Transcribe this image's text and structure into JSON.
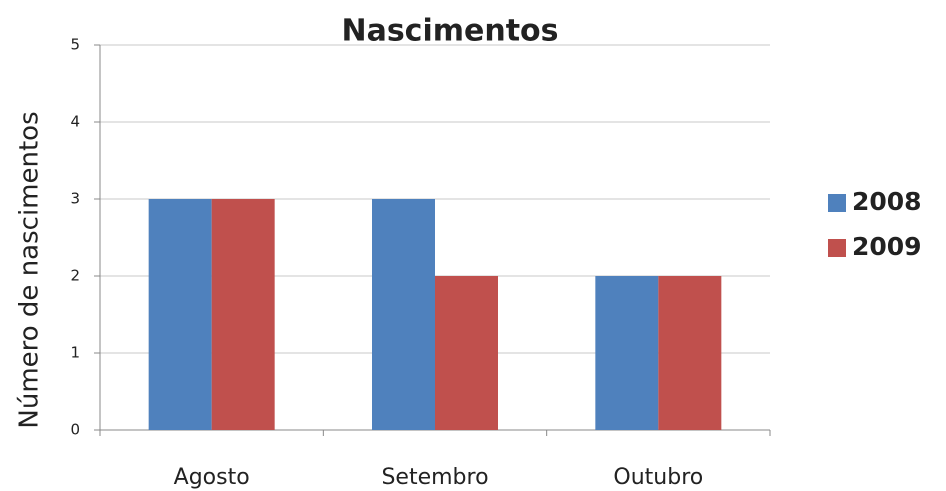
{
  "chart_data": {
    "type": "bar",
    "title": "Nascimentos",
    "y_label": "Número de nascimentos",
    "categories": [
      "Agosto",
      "Setembro",
      "Outubro"
    ],
    "series": [
      {
        "name": "2008",
        "color": "#4f81bd",
        "values": [
          3,
          3,
          2
        ]
      },
      {
        "name": "2009",
        "color": "#c0504d",
        "values": [
          3,
          2,
          2
        ]
      }
    ],
    "ylim": [
      0,
      5
    ],
    "yticks": [
      0,
      1,
      2,
      3,
      4,
      5
    ],
    "grid": true,
    "legend": "right"
  }
}
